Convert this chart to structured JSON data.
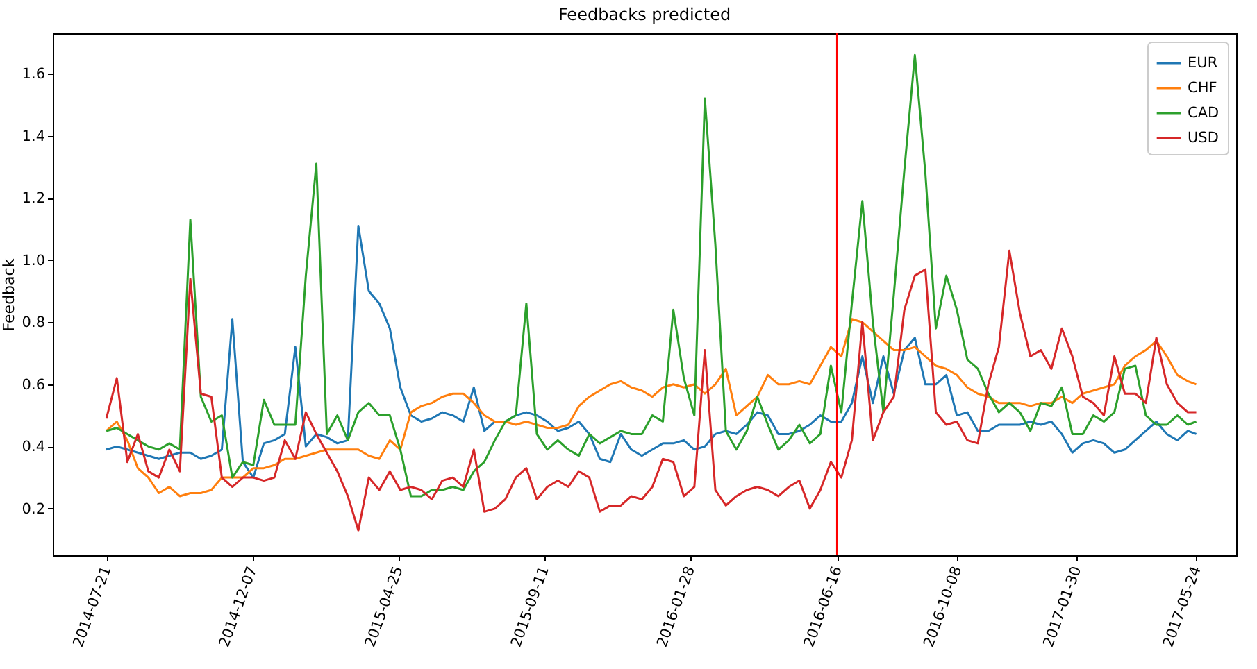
{
  "chart_data": {
    "type": "line",
    "title": "Feedbacks predicted",
    "ylabel": "Feedback",
    "x": [
      "2014-07-21",
      "2014-07-31",
      "2014-08-10",
      "2014-08-20",
      "2014-08-30",
      "2014-09-09",
      "2014-09-19",
      "2014-09-29",
      "2014-10-09",
      "2014-10-19",
      "2014-10-29",
      "2014-11-08",
      "2014-11-18",
      "2014-11-28",
      "2014-12-08",
      "2014-12-18",
      "2014-12-28",
      "2015-01-07",
      "2015-01-17",
      "2015-01-27",
      "2015-02-06",
      "2015-02-16",
      "2015-02-26",
      "2015-03-08",
      "2015-03-18",
      "2015-03-28",
      "2015-04-07",
      "2015-04-17",
      "2015-04-27",
      "2015-05-07",
      "2015-05-17",
      "2015-05-27",
      "2015-06-06",
      "2015-06-16",
      "2015-06-26",
      "2015-07-06",
      "2015-07-16",
      "2015-07-26",
      "2015-08-05",
      "2015-08-15",
      "2015-08-25",
      "2015-09-04",
      "2015-09-14",
      "2015-09-24",
      "2015-10-04",
      "2015-10-14",
      "2015-10-24",
      "2015-11-03",
      "2015-11-13",
      "2015-11-23",
      "2015-12-03",
      "2015-12-13",
      "2015-12-23",
      "2016-01-02",
      "2016-01-12",
      "2016-01-22",
      "2016-02-01",
      "2016-02-11",
      "2016-02-21",
      "2016-03-02",
      "2016-03-12",
      "2016-03-22",
      "2016-04-01",
      "2016-04-11",
      "2016-04-21",
      "2016-05-01",
      "2016-05-11",
      "2016-05-21",
      "2016-05-31",
      "2016-06-10",
      "2016-06-20",
      "2016-06-30",
      "2016-07-10",
      "2016-07-20",
      "2016-07-30",
      "2016-08-09",
      "2016-08-19",
      "2016-08-29",
      "2016-09-08",
      "2016-09-18",
      "2016-09-28",
      "2016-10-08",
      "2016-10-18",
      "2016-10-28",
      "2016-11-07",
      "2016-11-17",
      "2016-11-27",
      "2016-12-07",
      "2016-12-17",
      "2016-12-27",
      "2017-01-06",
      "2017-01-16",
      "2017-01-26",
      "2017-02-05",
      "2017-02-15",
      "2017-02-25",
      "2017-03-07",
      "2017-03-17",
      "2017-03-27",
      "2017-04-06",
      "2017-04-16",
      "2017-04-26",
      "2017-05-06",
      "2017-05-16",
      "2017-05-24"
    ],
    "series": [
      {
        "name": "EUR",
        "color": "#1f77b4",
        "values": [
          0.39,
          0.4,
          0.39,
          0.38,
          0.37,
          0.36,
          0.37,
          0.38,
          0.38,
          0.36,
          0.37,
          0.39,
          0.81,
          0.35,
          0.3,
          0.41,
          0.42,
          0.44,
          0.72,
          0.4,
          0.44,
          0.43,
          0.41,
          0.42,
          1.11,
          0.9,
          0.86,
          0.78,
          0.59,
          0.5,
          0.48,
          0.49,
          0.51,
          0.5,
          0.48,
          0.59,
          0.45,
          0.48,
          0.48,
          0.5,
          0.51,
          0.5,
          0.48,
          0.45,
          0.46,
          0.48,
          0.44,
          0.36,
          0.35,
          0.44,
          0.39,
          0.37,
          0.39,
          0.41,
          0.41,
          0.42,
          0.39,
          0.4,
          0.44,
          0.45,
          0.44,
          0.47,
          0.51,
          0.5,
          0.44,
          0.44,
          0.45,
          0.47,
          0.5,
          0.48,
          0.48,
          0.54,
          0.69,
          0.54,
          0.69,
          0.57,
          0.71,
          0.75,
          0.6,
          0.6,
          0.63,
          0.5,
          0.51,
          0.45,
          0.45,
          0.47,
          0.47,
          0.47,
          0.48,
          0.47,
          0.48,
          0.44,
          0.38,
          0.41,
          0.42,
          0.41,
          0.38,
          0.39,
          0.42,
          0.45,
          0.48,
          0.44,
          0.42,
          0.45,
          0.44
        ]
      },
      {
        "name": "CHF",
        "color": "#ff7f0e",
        "values": [
          0.45,
          0.48,
          0.42,
          0.33,
          0.3,
          0.25,
          0.27,
          0.24,
          0.25,
          0.25,
          0.26,
          0.3,
          0.3,
          0.3,
          0.33,
          0.33,
          0.34,
          0.36,
          0.36,
          0.37,
          0.38,
          0.39,
          0.39,
          0.39,
          0.39,
          0.37,
          0.36,
          0.42,
          0.39,
          0.51,
          0.53,
          0.54,
          0.56,
          0.57,
          0.57,
          0.54,
          0.5,
          0.48,
          0.48,
          0.47,
          0.48,
          0.47,
          0.46,
          0.46,
          0.47,
          0.53,
          0.56,
          0.58,
          0.6,
          0.61,
          0.59,
          0.58,
          0.56,
          0.59,
          0.6,
          0.59,
          0.6,
          0.57,
          0.6,
          0.65,
          0.5,
          0.53,
          0.56,
          0.63,
          0.6,
          0.6,
          0.61,
          0.6,
          0.66,
          0.72,
          0.69,
          0.81,
          0.8,
          0.77,
          0.74,
          0.71,
          0.71,
          0.72,
          0.69,
          0.66,
          0.65,
          0.63,
          0.59,
          0.57,
          0.56,
          0.54,
          0.54,
          0.54,
          0.53,
          0.54,
          0.54,
          0.56,
          0.54,
          0.57,
          0.58,
          0.59,
          0.6,
          0.66,
          0.69,
          0.71,
          0.74,
          0.69,
          0.63,
          0.61,
          0.6
        ]
      },
      {
        "name": "CAD",
        "color": "#2ca02c",
        "values": [
          0.45,
          0.46,
          0.44,
          0.42,
          0.4,
          0.39,
          0.41,
          0.39,
          1.13,
          0.56,
          0.48,
          0.5,
          0.3,
          0.35,
          0.34,
          0.55,
          0.47,
          0.47,
          0.47,
          0.95,
          1.31,
          0.44,
          0.5,
          0.42,
          0.51,
          0.54,
          0.5,
          0.5,
          0.39,
          0.24,
          0.24,
          0.26,
          0.26,
          0.27,
          0.26,
          0.32,
          0.35,
          0.42,
          0.48,
          0.5,
          0.86,
          0.44,
          0.39,
          0.42,
          0.39,
          0.37,
          0.44,
          0.41,
          0.43,
          0.45,
          0.44,
          0.44,
          0.5,
          0.48,
          0.84,
          0.62,
          0.5,
          1.52,
          1.05,
          0.45,
          0.39,
          0.45,
          0.56,
          0.47,
          0.39,
          0.42,
          0.47,
          0.41,
          0.44,
          0.66,
          0.51,
          0.86,
          1.19,
          0.8,
          0.51,
          0.89,
          1.29,
          1.66,
          1.28,
          0.78,
          0.95,
          0.84,
          0.68,
          0.65,
          0.57,
          0.51,
          0.54,
          0.51,
          0.45,
          0.54,
          0.53,
          0.59,
          0.44,
          0.44,
          0.5,
          0.48,
          0.51,
          0.65,
          0.66,
          0.5,
          0.47,
          0.47,
          0.5,
          0.47,
          0.48
        ]
      },
      {
        "name": "USD",
        "color": "#d62728",
        "values": [
          0.49,
          0.62,
          0.35,
          0.44,
          0.32,
          0.3,
          0.39,
          0.32,
          0.94,
          0.57,
          0.56,
          0.3,
          0.27,
          0.3,
          0.3,
          0.29,
          0.3,
          0.42,
          0.36,
          0.51,
          0.44,
          0.38,
          0.32,
          0.24,
          0.13,
          0.3,
          0.26,
          0.32,
          0.26,
          0.27,
          0.26,
          0.23,
          0.29,
          0.3,
          0.27,
          0.39,
          0.19,
          0.2,
          0.23,
          0.3,
          0.33,
          0.23,
          0.27,
          0.29,
          0.27,
          0.32,
          0.3,
          0.19,
          0.21,
          0.21,
          0.24,
          0.23,
          0.27,
          0.36,
          0.35,
          0.24,
          0.27,
          0.71,
          0.26,
          0.21,
          0.24,
          0.26,
          0.27,
          0.26,
          0.24,
          0.27,
          0.29,
          0.2,
          0.26,
          0.35,
          0.3,
          0.42,
          0.8,
          0.42,
          0.51,
          0.56,
          0.84,
          0.95,
          0.97,
          0.51,
          0.47,
          0.48,
          0.42,
          0.41,
          0.6,
          0.72,
          1.03,
          0.83,
          0.69,
          0.71,
          0.65,
          0.78,
          0.69,
          0.56,
          0.54,
          0.5,
          0.69,
          0.57,
          0.57,
          0.54,
          0.75,
          0.6,
          0.54,
          0.51,
          0.51
        ]
      }
    ],
    "xlim": [
      "2014-05-31",
      "2017-07-01"
    ],
    "xticks": [
      "2014-07-21",
      "2014-12-07",
      "2015-04-25",
      "2015-09-11",
      "2016-01-28",
      "2016-06-16",
      "2016-10-08",
      "2017-01-30",
      "2017-05-24"
    ],
    "ylim": [
      0.05,
      1.73
    ],
    "yticks": [
      0.2,
      0.4,
      0.6,
      0.8,
      {
        "value": 1,
        "label": "1.0"
      },
      1.2,
      1.4,
      1.6
    ],
    "ref_lines": [
      {
        "axis": "x",
        "value": "2016-06-16",
        "color": "#ff0000"
      }
    ],
    "legend": "top right"
  }
}
